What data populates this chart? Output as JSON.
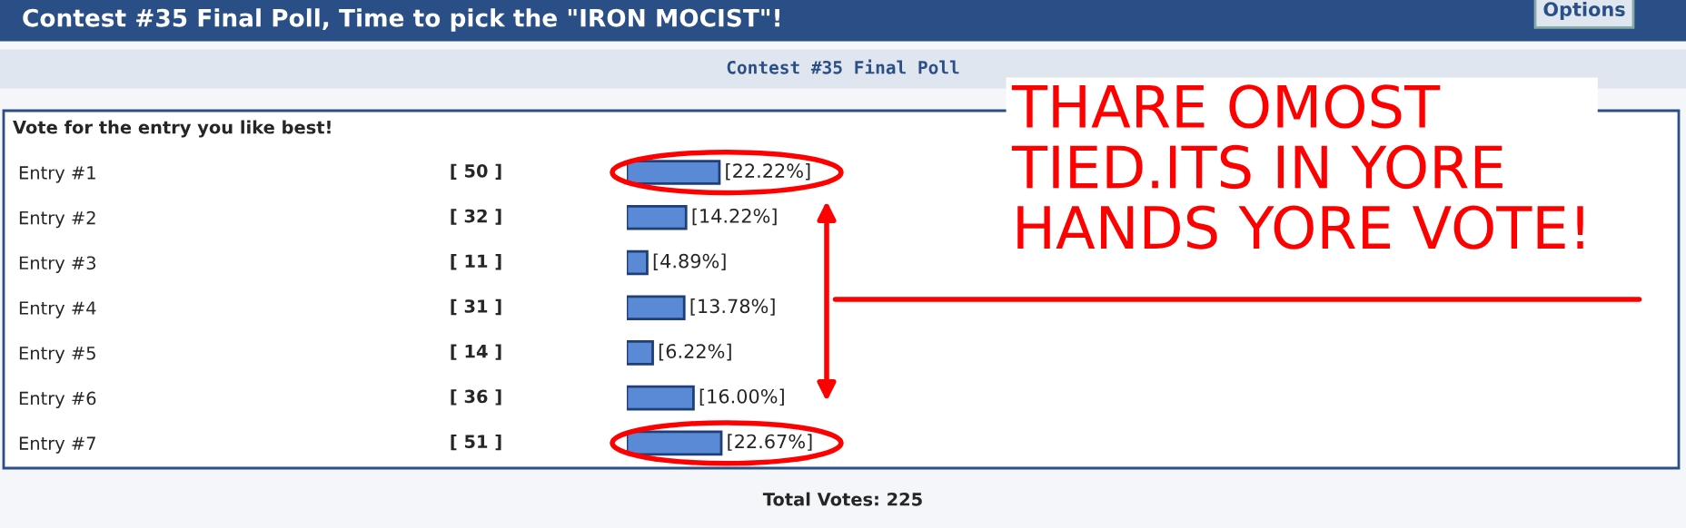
{
  "chart_data": {
    "type": "bar",
    "orientation": "horizontal",
    "title": "Contest #35 Final Poll, Time to pick the \"IRON MOCIST\"!",
    "subtitle": "Contest #35 Final Poll",
    "xlabel": "Vote for the entry you like best!",
    "categories": [
      "Entry #1",
      "Entry #2",
      "Entry #3",
      "Entry #4",
      "Entry #5",
      "Entry #6",
      "Entry #7"
    ],
    "values": [
      22.22,
      14.22,
      4.89,
      13.78,
      6.22,
      16.0,
      22.67
    ],
    "value_labels": [
      "[22.22%]",
      "[14.22%]",
      "[4.89%]",
      "[13.78%]",
      "[6.22%]",
      "[16.00%]",
      "[22.67%]"
    ],
    "color": "#5a8ad6",
    "annotations": [
      "[ 50 ]",
      "[ 32 ]",
      "[ 11 ]",
      "[ 31 ]",
      "[ 14 ]",
      "[ 36 ]",
      "[ 51 ]",
      "THARE OMOST\nTIED.ITS IN YORE\nHANDS YORE VOTE!",
      "Total Votes: 225",
      "Options"
    ]
  }
}
